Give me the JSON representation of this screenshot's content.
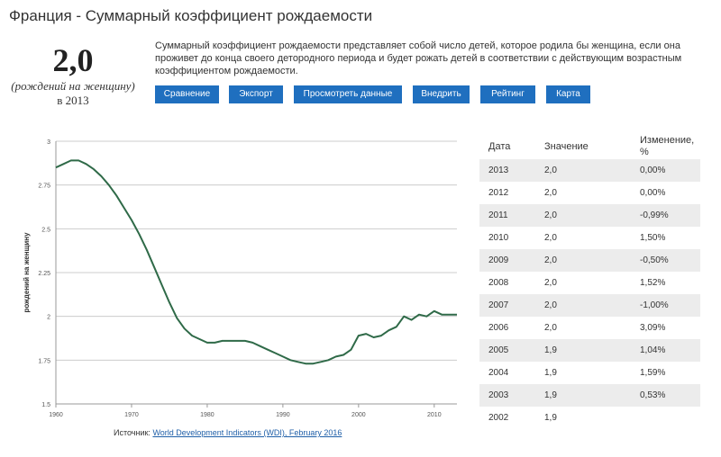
{
  "header": {
    "title": "Франция - Суммарный коэффициент рождаемости"
  },
  "stat": {
    "value": "2,0",
    "unit": "(рождений на женщину)",
    "year": "в 2013"
  },
  "description": "Суммарный коэффициент рождаемости представляет собой число детей, которое родила бы женщина, если она проживет до конца своего детородного периода и будет рожать детей в соответствии с действующим возрастным коэффициентом рождаемости.",
  "actions": [
    {
      "label": "Сравнение"
    },
    {
      "label": "Экспорт"
    },
    {
      "label": "Просмотреть данные"
    },
    {
      "label": "Внедрить"
    },
    {
      "label": "Рейтинг"
    },
    {
      "label": "Карта"
    }
  ],
  "colors": {
    "line": "#2f6a48",
    "button": "#1f6fbf",
    "grid": "#cccccc",
    "row_shade": "#ececec"
  },
  "chart_data": {
    "type": "line",
    "ylabel": "рождений на женщину",
    "xlim": [
      1960,
      2013
    ],
    "ylim": [
      1.5,
      3
    ],
    "x_ticks": [
      1960,
      1970,
      1980,
      1990,
      2000,
      2010
    ],
    "y_ticks": [
      1.5,
      1.75,
      2,
      2.25,
      2.5,
      2.75,
      3
    ],
    "y_tick_labels": [
      "1.5",
      "1.75",
      "2",
      "2.25",
      "2.5",
      "2.75",
      "3"
    ],
    "grid": "horizontal",
    "x": [
      1960,
      1961,
      1962,
      1963,
      1964,
      1965,
      1966,
      1967,
      1968,
      1969,
      1970,
      1971,
      1972,
      1973,
      1974,
      1975,
      1976,
      1977,
      1978,
      1979,
      1980,
      1981,
      1982,
      1983,
      1984,
      1985,
      1986,
      1987,
      1988,
      1989,
      1990,
      1991,
      1992,
      1993,
      1994,
      1995,
      1996,
      1997,
      1998,
      1999,
      2000,
      2001,
      2002,
      2003,
      2004,
      2005,
      2006,
      2007,
      2008,
      2009,
      2010,
      2011,
      2012,
      2013
    ],
    "y": [
      2.85,
      2.87,
      2.89,
      2.89,
      2.87,
      2.84,
      2.8,
      2.75,
      2.69,
      2.62,
      2.55,
      2.47,
      2.38,
      2.28,
      2.18,
      2.08,
      1.99,
      1.93,
      1.89,
      1.87,
      1.85,
      1.85,
      1.86,
      1.86,
      1.86,
      1.86,
      1.85,
      1.83,
      1.81,
      1.79,
      1.77,
      1.75,
      1.74,
      1.73,
      1.73,
      1.74,
      1.75,
      1.77,
      1.78,
      1.81,
      1.89,
      1.9,
      1.88,
      1.89,
      1.92,
      1.94,
      2.0,
      1.98,
      2.01,
      2.0,
      2.03,
      2.01,
      2.01,
      2.01
    ]
  },
  "source": {
    "label": "Источник:",
    "link": "World Development Indicators (WDI), February 2016"
  },
  "table": {
    "headers": {
      "date": "Дата",
      "value": "Значение",
      "change": "Изменение, %"
    },
    "rows": [
      {
        "date": "2013",
        "value": "2,0",
        "change": "0,00%"
      },
      {
        "date": "2012",
        "value": "2,0",
        "change": "0,00%"
      },
      {
        "date": "2011",
        "value": "2,0",
        "change": "-0,99%"
      },
      {
        "date": "2010",
        "value": "2,0",
        "change": "1,50%"
      },
      {
        "date": "2009",
        "value": "2,0",
        "change": "-0,50%"
      },
      {
        "date": "2008",
        "value": "2,0",
        "change": "1,52%"
      },
      {
        "date": "2007",
        "value": "2,0",
        "change": "-1,00%"
      },
      {
        "date": "2006",
        "value": "2,0",
        "change": "3,09%"
      },
      {
        "date": "2005",
        "value": "1,9",
        "change": "1,04%"
      },
      {
        "date": "2004",
        "value": "1,9",
        "change": "1,59%"
      },
      {
        "date": "2003",
        "value": "1,9",
        "change": "0,53%"
      },
      {
        "date": "2002",
        "value": "1,9",
        "change": ""
      }
    ]
  }
}
